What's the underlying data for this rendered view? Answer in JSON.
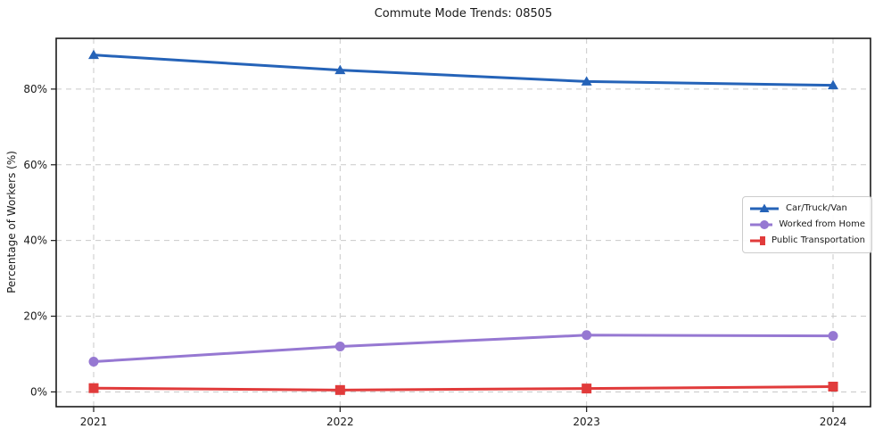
{
  "chart_data": {
    "type": "line",
    "title": "Commute Mode Trends: 08505",
    "xlabel": "",
    "ylabel": "Percentage of Workers (%)",
    "categories": [
      "2021",
      "2022",
      "2023",
      "2024"
    ],
    "series": [
      {
        "name": "Car/Truck/Van",
        "marker": "triangle",
        "color": "#2563b8",
        "values": [
          89,
          85,
          82,
          81
        ]
      },
      {
        "name": "Worked from Home",
        "marker": "circle",
        "color": "#9678d2",
        "values": [
          8,
          12,
          15,
          14.8
        ]
      },
      {
        "name": "Public Transportation",
        "marker": "square",
        "color": "#e13b3b",
        "values": [
          1,
          0.5,
          0.9,
          1.4
        ]
      }
    ],
    "yticks": [
      0,
      20,
      40,
      60,
      80
    ],
    "ytick_labels": [
      "0%",
      "20%",
      "40%",
      "60%",
      "80%"
    ],
    "ylim": [
      -3.9,
      93.4
    ],
    "grid": true,
    "grid_style": "dashed",
    "legend_position": "center right"
  },
  "style": {
    "background": "#ffffff",
    "grid_color": "#c9c9c9",
    "spine_color": "#1a1a1a",
    "text_color": "#1a1a1a",
    "legend_border": "#cccccc"
  }
}
